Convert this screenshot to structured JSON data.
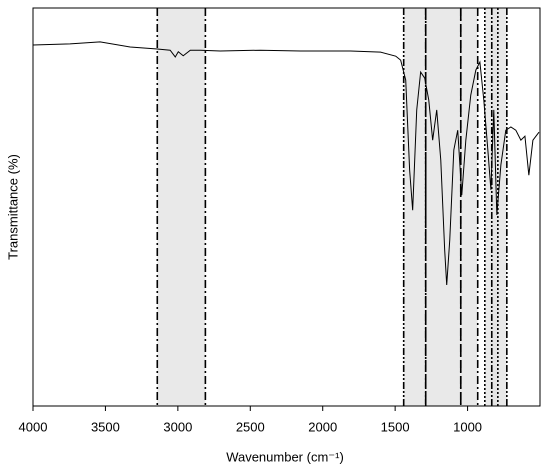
{
  "chart_data": {
    "type": "line",
    "x_label": "Wavenumber (cm⁻¹)",
    "y_label": "Transmittance (%)",
    "xlim": [
      4000,
      500
    ],
    "xticks": [
      4000,
      3500,
      3000,
      2500,
      2000,
      1500,
      1000
    ],
    "ylim": [
      0,
      100
    ],
    "color": "#000000",
    "region_color": "#e4e4e4",
    "regions": [
      {
        "from": 3142,
        "to": 2810,
        "dash": "dash-dot"
      },
      {
        "from": 1441,
        "to": 1289,
        "dash": "dash-dot-dot"
      },
      {
        "from": 1289,
        "to": 1047,
        "dash": "long-dash"
      },
      {
        "from": 1047,
        "to": 930,
        "dash": "dash-dot"
      },
      {
        "from": 881,
        "to": 791,
        "dash": "dotted"
      },
      {
        "from": 833,
        "to": 729,
        "dash": "dash-dot-dot"
      }
    ],
    "x": [
      4000,
      3744,
      3537,
      3329,
      3142,
      3053,
      3018,
      2997,
      2963,
      2914,
      2845,
      2707,
      2430,
      2153,
      1808,
      1600,
      1496,
      1462,
      1427,
      1400,
      1379,
      1351,
      1324,
      1296,
      1268,
      1241,
      1213,
      1185,
      1158,
      1144,
      1123,
      1095,
      1068,
      1040,
      1012,
      978,
      943,
      915,
      888,
      860,
      839,
      819,
      798,
      770,
      736,
      701,
      667,
      632,
      604,
      577,
      549,
      507
    ],
    "values": [
      90.7,
      91.0,
      91.5,
      90.2,
      89.7,
      89.4,
      87.7,
      89.0,
      88.0,
      89.4,
      89.4,
      89.2,
      89.4,
      89.2,
      89.2,
      88.9,
      87.9,
      86.9,
      81.9,
      59.3,
      49.2,
      74.4,
      83.9,
      82.4,
      76.9,
      66.8,
      74.4,
      61.8,
      39.2,
      30.4,
      41.7,
      64.3,
      69.3,
      53.0,
      66.8,
      78.1,
      84.4,
      86.4,
      76.9,
      64.3,
      54.3,
      74.4,
      48.0,
      60.6,
      69.3,
      70.1,
      69.3,
      66.8,
      67.8,
      58.0,
      66.8,
      68.8
    ]
  }
}
